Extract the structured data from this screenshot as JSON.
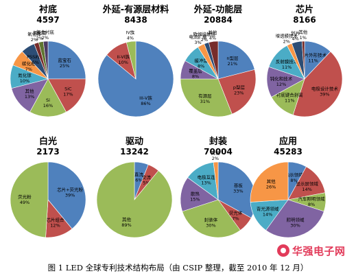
{
  "chart_data": [
    {
      "type": "pie",
      "title": "衬底",
      "subtitle": "4597",
      "slices": [
        {
          "label": "蓝宝石",
          "value": 25,
          "color": "#4f81bd"
        },
        {
          "label": "SiC",
          "value": 17,
          "color": "#c0504d"
        },
        {
          "label": "Si",
          "value": 16,
          "color": "#9bbb59"
        },
        {
          "label": "其他",
          "value": 13,
          "color": "#8064a2"
        },
        {
          "label": "氮化镓",
          "value": 10,
          "color": "#4bacc6"
        },
        {
          "label": "碳化硅",
          "value": 7,
          "color": "#f79646"
        },
        {
          "label": "PSS衬底",
          "value": 6,
          "color": "#2c4d75"
        },
        {
          "label": "氧化锌",
          "value": 2,
          "color": "#772c2a"
        },
        {
          "label": "氮化铝",
          "value": 2,
          "color": "#5f7530"
        },
        {
          "label": "复合衬底",
          "value": 2,
          "color": "#4d3b62"
        }
      ]
    },
    {
      "type": "pie",
      "title": "外延-有源层材料",
      "subtitle": "8438",
      "slices": [
        {
          "label": "III-V族",
          "value": 86,
          "color": "#4f81bd"
        },
        {
          "label": "II-VI族",
          "value": 10,
          "color": "#c0504d"
        },
        {
          "label": "IV族",
          "value": 4,
          "color": "#9bbb59"
        }
      ]
    },
    {
      "type": "pie",
      "title": "外延-功能层",
      "subtitle": "20884",
      "slices": [
        {
          "label": "n型层",
          "value": 21,
          "color": "#4f81bd"
        },
        {
          "label": "p型层",
          "value": 23,
          "color": "#c0504d"
        },
        {
          "label": "有源层",
          "value": 31,
          "color": "#9bbb59"
        },
        {
          "label": "覆盖层",
          "value": 8,
          "color": "#8064a2"
        },
        {
          "label": "缓冲层",
          "value": 8,
          "color": "#4bacc6"
        },
        {
          "label": "电流扩展",
          "value": 3,
          "color": "#f79646"
        },
        {
          "label": "欧姆接触层",
          "value": 2,
          "color": "#2c4d75"
        },
        {
          "label": "其他",
          "value": 4,
          "color": "#772c2a"
        }
      ]
    },
    {
      "type": "pie",
      "title": "芯片",
      "subtitle": "8166",
      "slices": [
        {
          "label": "芯片外形技术",
          "value": 11,
          "color": "#4f81bd"
        },
        {
          "label": "电极设计技术",
          "value": 39,
          "color": "#c0504d"
        },
        {
          "label": "衬底键合剥离",
          "value": 11,
          "color": "#9bbb59"
        },
        {
          "label": "钝化和技术",
          "value": 12,
          "color": "#8064a2"
        },
        {
          "label": "反射膜技术",
          "value": 11,
          "color": "#4bacc6"
        },
        {
          "label": "增透膜技术",
          "value": 2,
          "color": "#f79646"
        },
        {
          "label": "划片",
          "value": 4,
          "color": "#2c4d75"
        },
        {
          "label": "其他",
          "value": 1,
          "color": "#772c2a"
        }
      ]
    },
    {
      "type": "pie",
      "title": "白光",
      "subtitle": "2173",
      "slices": [
        {
          "label": "芯片+荧光粉",
          "value": 39,
          "color": "#4f81bd"
        },
        {
          "label": "芯片组合",
          "value": 12,
          "color": "#c0504d"
        },
        {
          "label": "荧光粉",
          "value": 49,
          "color": "#9bbb59"
        }
      ]
    },
    {
      "type": "pie",
      "title": "驱动",
      "subtitle": "13242",
      "slices": [
        {
          "label": "直流",
          "value": 6,
          "color": "#4f81bd"
        },
        {
          "label": "交流",
          "value": 5,
          "color": "#c0504d"
        },
        {
          "label": "其他",
          "value": 89,
          "color": "#9bbb59"
        }
      ]
    },
    {
      "type": "pie",
      "title": "封装",
      "subtitle": "70004",
      "slices": [
        {
          "label": "基板",
          "value": 33,
          "color": "#4f81bd"
        },
        {
          "label": "荧光体",
          "value": 7,
          "color": "#c0504d"
        },
        {
          "label": "封装体",
          "value": 30,
          "color": "#9bbb59"
        },
        {
          "label": "散热",
          "value": 15,
          "color": "#8064a2"
        },
        {
          "label": "电极互连",
          "value": 13,
          "color": "#4bacc6"
        },
        {
          "label": "其他",
          "value": 2,
          "color": "#f79646"
        }
      ]
    },
    {
      "type": "pie",
      "title": "应用",
      "subtitle": "45283",
      "slices": [
        {
          "label": "指示领域",
          "value": 8,
          "color": "#4f81bd"
        },
        {
          "label": "显示屏领域",
          "value": 14,
          "color": "#c0504d"
        },
        {
          "label": "汽车照明领域",
          "value": 8,
          "color": "#9bbb59"
        },
        {
          "label": "照明领域",
          "value": 30,
          "color": "#8064a2"
        },
        {
          "label": "背光源领域",
          "value": 14,
          "color": "#4bacc6"
        },
        {
          "label": "其他",
          "value": 26,
          "color": "#f79646"
        }
      ]
    }
  ],
  "caption": "图 1 LED 全球专利技术结构布局（由 CSIP 整理，截至 2010 年 12 月）",
  "watermark": "华强电子网"
}
